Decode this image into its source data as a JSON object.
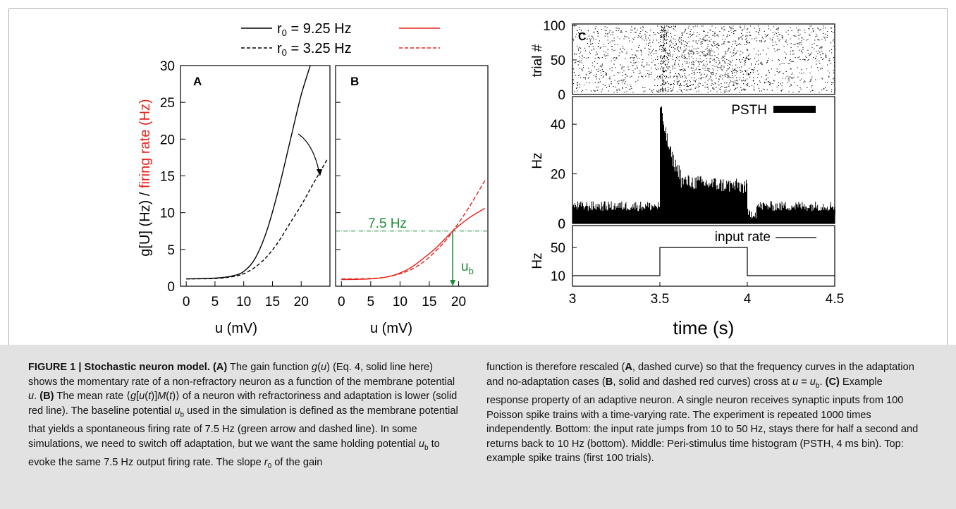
{
  "legend": {
    "entries": [
      {
        "label_main": "r",
        "label_sub": "0",
        "label_rest": " = 9.25 Hz",
        "style_left": "solid-black",
        "style_right": "solid-red"
      },
      {
        "label_main": "r",
        "label_sub": "0",
        "label_rest": " = 3.25 Hz",
        "style_left": "dashed-black",
        "style_right": "dashed-red"
      }
    ]
  },
  "panels": {
    "A": {
      "letter": "A",
      "xlabel": "u (mV)"
    },
    "B": {
      "letter": "B",
      "xlabel": "u (mV)",
      "hline_label": "7.5 Hz",
      "arrow_label_main": "u",
      "arrow_label_sub": "b"
    },
    "C": {
      "letter": "C",
      "raster_ylabel": "trial #",
      "psth_ylabel": "Hz",
      "psth_legend": "PSTH",
      "input_ylabel": "Hz",
      "input_legend": "input rate",
      "xlabel": "time (s)"
    }
  },
  "shared_ylabel": {
    "black_part": "g[U] (Hz) / ",
    "red_part": "firing rate (Hz)"
  },
  "colors": {
    "red": "#e8231c",
    "green": "#1e8a3a",
    "black": "#000000"
  },
  "chart_data": [
    {
      "type": "line",
      "panel": "A",
      "xlabel": "u (mV)",
      "ylabel": "g[U] (Hz) / firing rate (Hz)",
      "xlim": [
        -1,
        25
      ],
      "ylim": [
        0,
        30
      ],
      "xticks": [
        0,
        5,
        10,
        15,
        20
      ],
      "yticks": [
        0,
        5,
        10,
        15,
        20,
        25,
        30
      ],
      "series": [
        {
          "name": "r0 = 9.25 Hz",
          "style": "solid",
          "color": "#000000",
          "x": [
            0,
            5,
            8,
            10,
            12,
            14,
            16,
            18,
            20,
            22
          ],
          "y": [
            1.0,
            1.1,
            1.4,
            2.0,
            3.8,
            7.5,
            13.0,
            19.5,
            26.0,
            31.0
          ]
        },
        {
          "name": "r0 = 3.25 Hz",
          "style": "dashed",
          "color": "#000000",
          "x": [
            0,
            5,
            8,
            10,
            12,
            14,
            16,
            18,
            20,
            22,
            24.5
          ],
          "y": [
            1.0,
            1.05,
            1.3,
            1.7,
            2.6,
            4.0,
            6.0,
            8.5,
            11.0,
            13.8,
            17.2
          ]
        }
      ],
      "annotation": "curved arrow from solid to dashed curve"
    },
    {
      "type": "line",
      "panel": "B",
      "xlabel": "u (mV)",
      "xlim": [
        -1,
        25
      ],
      "ylim": [
        0,
        30
      ],
      "xticks": [
        0,
        5,
        10,
        15,
        20
      ],
      "series": [
        {
          "name": "r0 = 9.25 Hz",
          "style": "solid",
          "color": "#e8231c",
          "x": [
            0,
            5,
            8,
            10,
            12,
            14,
            16,
            18,
            19,
            20,
            22,
            24.5
          ],
          "y": [
            0.9,
            1.0,
            1.3,
            1.8,
            2.6,
            3.8,
            5.1,
            6.7,
            7.5,
            8.2,
            9.4,
            10.6
          ]
        },
        {
          "name": "r0 = 3.25 Hz",
          "style": "dashed",
          "color": "#e8231c",
          "x": [
            0,
            5,
            8,
            10,
            12,
            14,
            16,
            18,
            19,
            20,
            22,
            24.5
          ],
          "y": [
            1.0,
            1.05,
            1.3,
            1.7,
            2.3,
            3.3,
            4.7,
            6.4,
            7.5,
            8.6,
            11.0,
            14.4
          ]
        }
      ],
      "hline": {
        "y": 7.5,
        "label": "7.5 Hz",
        "color": "#1e8a3a"
      },
      "arrow": {
        "x": 19,
        "from_y": 7.5,
        "to_y": 0,
        "label": "u_b",
        "color": "#1e8a3a"
      }
    },
    {
      "type": "scatter",
      "panel": "C-raster",
      "ylabel": "trial #",
      "xlim": [
        3,
        4.5
      ],
      "ylim": [
        0,
        100
      ],
      "yticks": [
        0,
        50,
        100
      ],
      "description": "spike raster, first 100 trials; higher density 3.5-4.0 s and strong onset at 3.5 s",
      "rate_hz": {
        "baseline": 8,
        "onset_3.5": 45,
        "sustained": 15
      }
    },
    {
      "type": "bar",
      "panel": "C-psth",
      "ylabel": "Hz",
      "xlim": [
        3,
        4.5
      ],
      "ylim": [
        0,
        50
      ],
      "yticks": [
        0,
        20,
        40
      ],
      "series": [
        {
          "name": "PSTH",
          "color": "#000000",
          "segments": [
            {
              "x": [
                3.0,
                3.5
              ],
              "y": 7
            },
            {
              "x": [
                3.5,
                3.52
              ],
              "y": 46
            },
            {
              "x": [
                3.52,
                3.56
              ],
              "y": 38
            },
            {
              "x": [
                3.56,
                3.6
              ],
              "y": 24
            },
            {
              "x": [
                3.6,
                4.0
              ],
              "y": 17
            },
            {
              "x": [
                4.0,
                4.05
              ],
              "y": 4
            },
            {
              "x": [
                4.05,
                4.5
              ],
              "y": 7
            }
          ]
        }
      ]
    },
    {
      "type": "line",
      "panel": "C-input",
      "ylabel": "Hz",
      "xlabel": "time (s)",
      "xlim": [
        3,
        4.5
      ],
      "yticks": [
        10,
        50
      ],
      "xticks": [
        3,
        3.5,
        4,
        4.5
      ],
      "series": [
        {
          "name": "input rate",
          "color": "#000000",
          "x": [
            3.0,
            3.5,
            3.5,
            4.0,
            4.0,
            4.5
          ],
          "y": [
            10,
            10,
            50,
            50,
            10,
            10
          ]
        }
      ]
    }
  ],
  "caption": {
    "left": [
      {
        "t": "FIGURE 1 | Stochastic neuron model. (A)",
        "s": "b"
      },
      {
        "t": " The gain function ",
        "s": ""
      },
      {
        "t": "g",
        "s": "i"
      },
      {
        "t": "(",
        "s": ""
      },
      {
        "t": "u",
        "s": "i"
      },
      {
        "t": ") (Eq. 4, solid line here) shows the momentary rate of a non-refractory neuron as a function of the membrane potential ",
        "s": ""
      },
      {
        "t": "u",
        "s": "i"
      },
      {
        "t": ". ",
        "s": ""
      },
      {
        "t": "(B)",
        "s": "b"
      },
      {
        "t": " The mean rate ⟨",
        "s": ""
      },
      {
        "t": "g",
        "s": "i"
      },
      {
        "t": "[",
        "s": ""
      },
      {
        "t": "u",
        "s": "i"
      },
      {
        "t": "(",
        "s": ""
      },
      {
        "t": "t",
        "s": "i"
      },
      {
        "t": ")]",
        "s": ""
      },
      {
        "t": "M",
        "s": "i"
      },
      {
        "t": "(",
        "s": ""
      },
      {
        "t": "t",
        "s": "i"
      },
      {
        "t": ")⟩ of a neuron with refractoriness and adaptation is lower (solid red line). The baseline potential ",
        "s": ""
      },
      {
        "t": "u",
        "s": "i"
      },
      {
        "t": "b",
        "s": "sub"
      },
      {
        "t": " used in the simulation is defined as the membrane potential that yields a spontaneous firing rate of 7.5 Hz (green arrow and dashed line). In some simulations, we need to switch off adaptation, but we want the same holding potential ",
        "s": ""
      },
      {
        "t": "u",
        "s": "i"
      },
      {
        "t": "b",
        "s": "sub"
      },
      {
        "t": " to evoke the same 7.5 Hz output firing rate. The slope ",
        "s": ""
      },
      {
        "t": "r",
        "s": "i"
      },
      {
        "t": "0",
        "s": "sub"
      },
      {
        "t": " of the gain",
        "s": ""
      }
    ],
    "right": [
      {
        "t": "function is therefore rescaled (",
        "s": ""
      },
      {
        "t": "A",
        "s": "b"
      },
      {
        "t": ", dashed curve) so that the frequency curves in the adaptation and no-adaptation cases (",
        "s": ""
      },
      {
        "t": "B",
        "s": "b"
      },
      {
        "t": ", solid and dashed red curves) cross at ",
        "s": ""
      },
      {
        "t": "u",
        "s": "i"
      },
      {
        "t": " = ",
        "s": ""
      },
      {
        "t": "u",
        "s": "i"
      },
      {
        "t": "b",
        "s": "sub"
      },
      {
        "t": ". ",
        "s": ""
      },
      {
        "t": "(C)",
        "s": "b"
      },
      {
        "t": " Example response property of an adaptive neuron. A single neuron receives synaptic inputs from 100 Poisson spike trains with a time-varying rate. The experiment is repeated 1000 times independently. Bottom: the input rate jumps from 10 to 50 Hz, stays there for half a second and returns back to 10 Hz (bottom). Middle: Peri-stimulus time histogram (PSTH, 4 ms bin). Top: example spike trains (first 100 trials).",
        "s": ""
      }
    ]
  }
}
